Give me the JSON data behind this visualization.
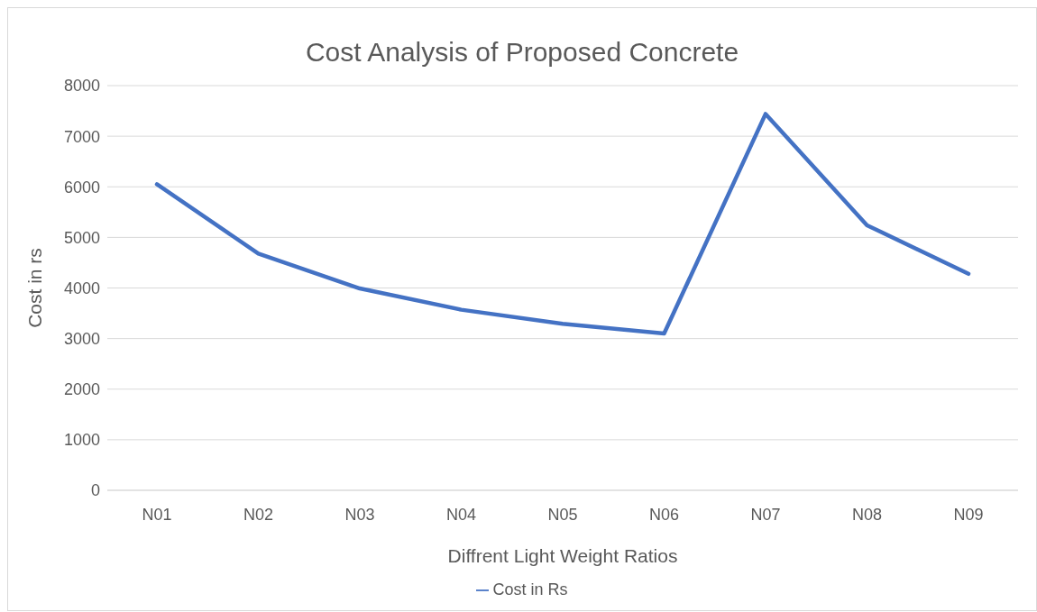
{
  "chart_data": {
    "type": "line",
    "title": "Cost Analysis of Proposed Concrete",
    "xlabel": "Diffrent Light Weight Ratios",
    "ylabel": "Cost in rs",
    "categories": [
      "N01",
      "N02",
      "N03",
      "N04",
      "N05",
      "N06",
      "N07",
      "N08",
      "N09"
    ],
    "series": [
      {
        "name": "Cost in Rs",
        "color": "#4472c4",
        "values": [
          6050,
          4680,
          3990,
          3570,
          3290,
          3100,
          7440,
          5240,
          4280
        ]
      }
    ],
    "ylim": [
      0,
      8000
    ],
    "yticks": [
      0,
      1000,
      2000,
      3000,
      4000,
      5000,
      6000,
      7000,
      8000
    ],
    "grid": "y",
    "legend": "bottom",
    "marker": "none",
    "line_style": "solid"
  }
}
